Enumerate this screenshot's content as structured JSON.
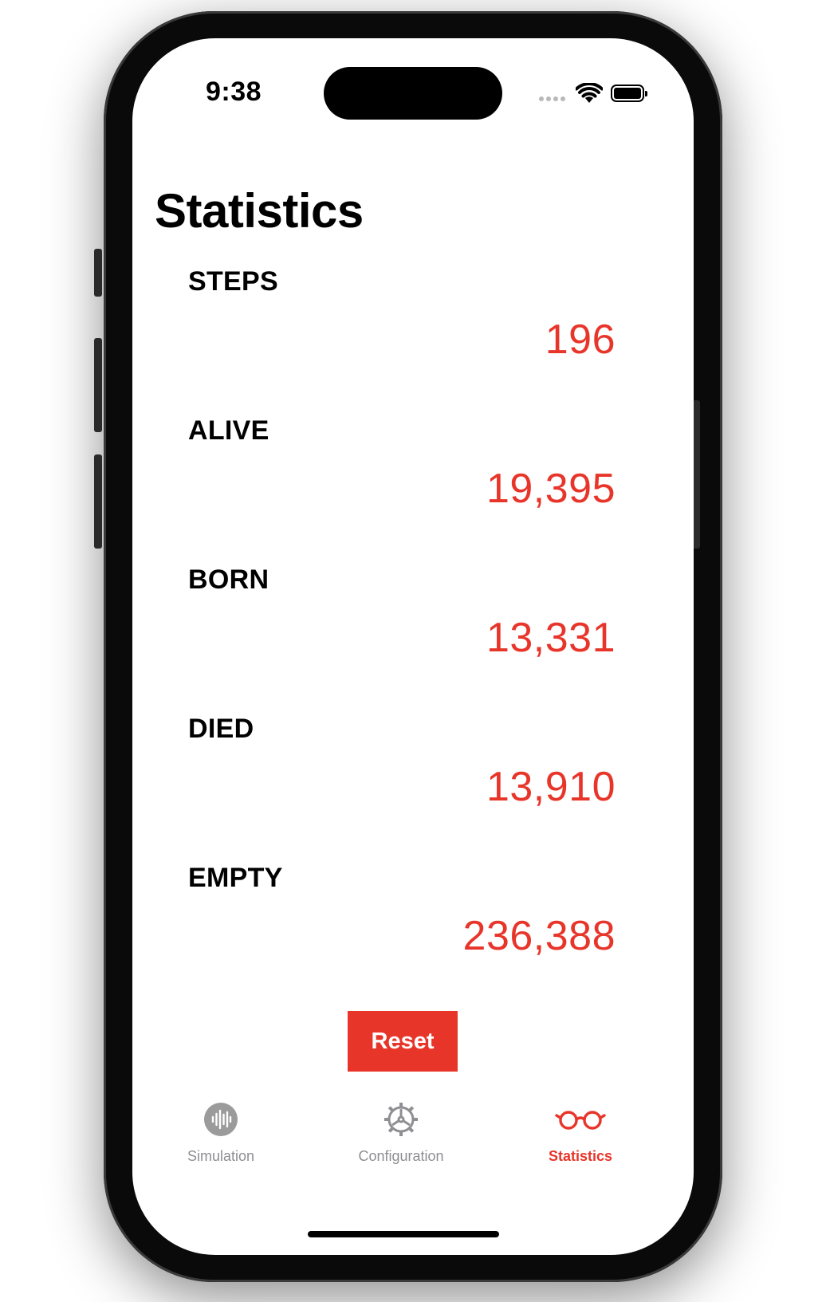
{
  "status_bar": {
    "time": "9:38"
  },
  "page": {
    "title": "Statistics"
  },
  "stats": [
    {
      "label": "STEPS",
      "value": "196"
    },
    {
      "label": "ALIVE",
      "value": "19,395"
    },
    {
      "label": "BORN",
      "value": "13,331"
    },
    {
      "label": "DIED",
      "value": "13,910"
    },
    {
      "label": "EMPTY",
      "value": "236,388"
    }
  ],
  "reset_label": "Reset",
  "tabs": [
    {
      "label": "Simulation",
      "icon": "waveform-icon",
      "active": false
    },
    {
      "label": "Configuration",
      "icon": "gear-icon",
      "active": false
    },
    {
      "label": "Statistics",
      "icon": "eyeglasses-icon",
      "active": true
    }
  ],
  "colors": {
    "accent": "#e8352a",
    "inactive": "#8e8e93"
  }
}
